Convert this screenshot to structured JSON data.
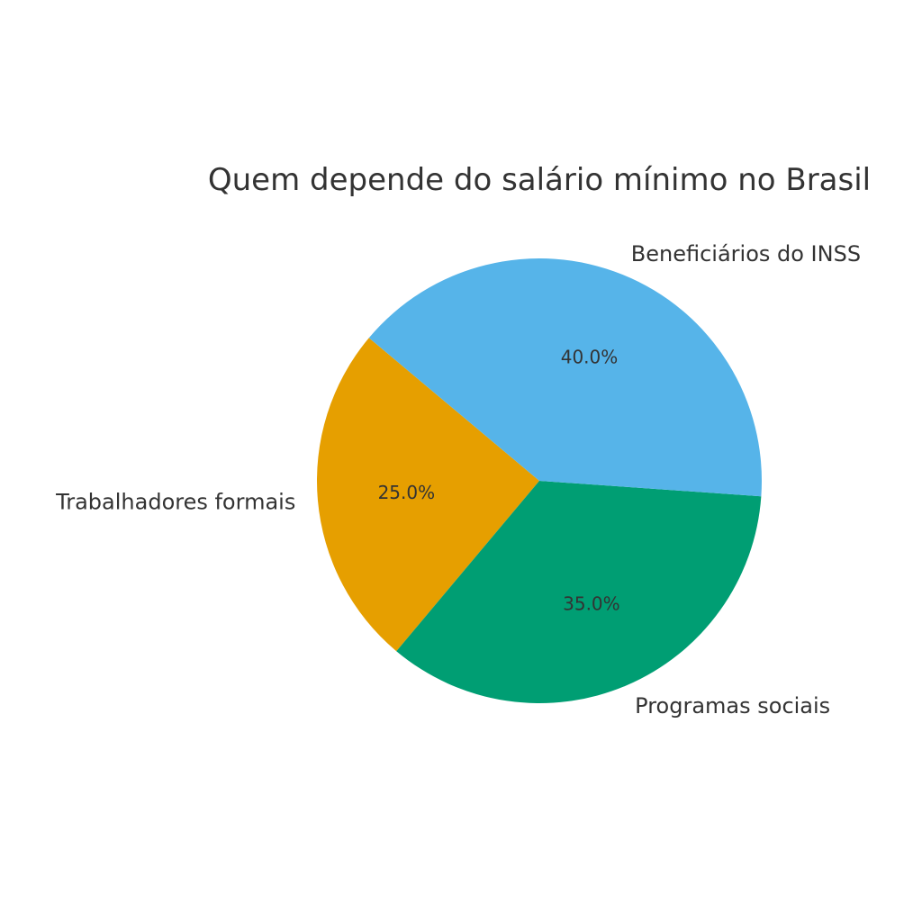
{
  "chart_data": {
    "type": "pie",
    "title": "Quem depende do salário mínimo no Brasil",
    "categories": [
      "Trabalhadores formais",
      "Programas sociais",
      "Beneficiários do INSS"
    ],
    "values": [
      25.0,
      35.0,
      40.0
    ],
    "value_labels": [
      "25.0%",
      "35.0%",
      "40.0%"
    ],
    "colors": [
      "#E69F00",
      "#009E73",
      "#56B4E9"
    ],
    "start_angle_deg": 140,
    "direction": "counterclockwise",
    "legend": "none"
  }
}
